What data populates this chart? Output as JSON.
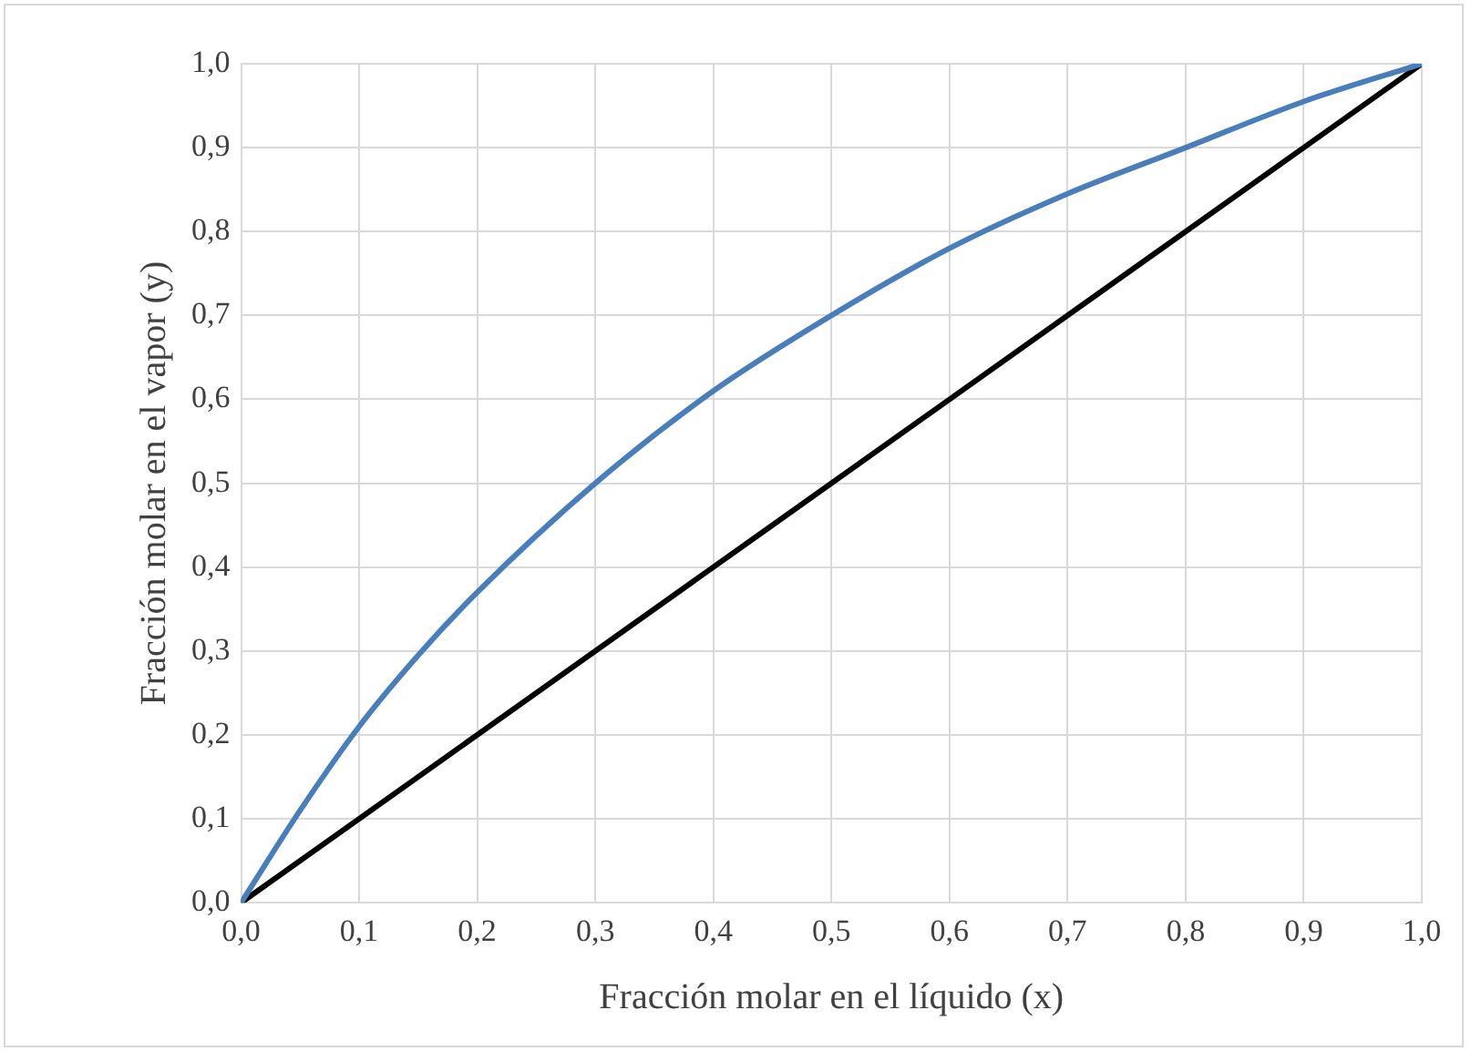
{
  "chart_data": {
    "type": "line",
    "xlabel": "Fracción molar en el líquido (x)",
    "ylabel": "Fracción molar en el vapor (y)",
    "series": [
      {
        "color": "#4a7ebb",
        "x": [
          0,
          0.05,
          0.1,
          0.15,
          0.2,
          0.3,
          0.4,
          0.5,
          0.6,
          0.7,
          0.8,
          0.9,
          1
        ],
        "values": [
          0,
          0.11,
          0.21,
          0.295,
          0.37,
          0.5,
          0.61,
          0.7,
          0.78,
          0.845,
          0.9,
          0.955,
          1
        ]
      },
      {
        "color": "#000000",
        "x": [
          0,
          1
        ],
        "values": [
          0,
          1
        ]
      }
    ],
    "xlim": [
      0,
      1
    ],
    "ylim": [
      0,
      1
    ],
    "xticks": [
      {
        "value": 0,
        "label": "0,0"
      },
      {
        "value": 0.1,
        "label": "0,1"
      },
      {
        "value": 0.2,
        "label": "0,2"
      },
      {
        "value": 0.3,
        "label": "0,3"
      },
      {
        "value": 0.4,
        "label": "0,4"
      },
      {
        "value": 0.5,
        "label": "0,5"
      },
      {
        "value": 0.6,
        "label": "0,6"
      },
      {
        "value": 0.7,
        "label": "0,7"
      },
      {
        "value": 0.8,
        "label": "0,8"
      },
      {
        "value": 0.9,
        "label": "0,9"
      },
      {
        "value": 1,
        "label": "1,0"
      }
    ],
    "yticks": [
      {
        "value": 0,
        "label": "0,0"
      },
      {
        "value": 0.1,
        "label": "0,1"
      },
      {
        "value": 0.2,
        "label": "0,2"
      },
      {
        "value": 0.3,
        "label": "0,3"
      },
      {
        "value": 0.4,
        "label": "0,4"
      },
      {
        "value": 0.5,
        "label": "0,5"
      },
      {
        "value": 0.6,
        "label": "0,6"
      },
      {
        "value": 0.7,
        "label": "0,7"
      },
      {
        "value": 0.8,
        "label": "0,8"
      },
      {
        "value": 0.9,
        "label": "0,9"
      },
      {
        "value": 1,
        "label": "1,0"
      }
    ],
    "grid": true,
    "legend": false,
    "marker": "none",
    "line_style": "solid"
  }
}
